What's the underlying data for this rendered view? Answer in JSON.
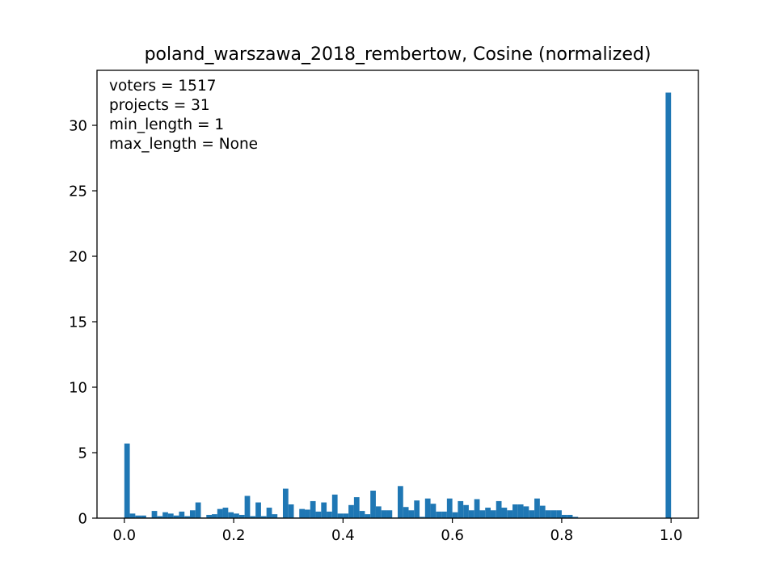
{
  "chart_data": {
    "type": "bar",
    "title": "poland_warszawa_2018_rembertow, Cosine (normalized)",
    "xlabel": "",
    "ylabel": "",
    "xlim": [
      -0.05,
      1.05
    ],
    "ylim": [
      0,
      34.2
    ],
    "x_ticks": [
      {
        "value": 0.0,
        "label": "0.0"
      },
      {
        "value": 0.2,
        "label": "0.2"
      },
      {
        "value": 0.4,
        "label": "0.4"
      },
      {
        "value": 0.6,
        "label": "0.6"
      },
      {
        "value": 0.8,
        "label": "0.8"
      },
      {
        "value": 1.0,
        "label": "1.0"
      }
    ],
    "y_ticks": [
      {
        "value": 0,
        "label": "0"
      },
      {
        "value": 5,
        "label": "5"
      },
      {
        "value": 10,
        "label": "10"
      },
      {
        "value": 15,
        "label": "15"
      },
      {
        "value": 20,
        "label": "20"
      },
      {
        "value": 25,
        "label": "25"
      },
      {
        "value": 30,
        "label": "30"
      }
    ],
    "annotations": [
      "voters = 1517",
      "projects = 31",
      "min_length = 1",
      "max_length = None"
    ],
    "grid": false,
    "legend": "none",
    "bar_color": "#1f77b4",
    "bin_width": 0.01,
    "bins_start": [
      0.0,
      0.01,
      0.02,
      0.03,
      0.04,
      0.05,
      0.06,
      0.07,
      0.08,
      0.09,
      0.1,
      0.11,
      0.12,
      0.13,
      0.14,
      0.15,
      0.16,
      0.17,
      0.18,
      0.19,
      0.2,
      0.21,
      0.22,
      0.23,
      0.24,
      0.25,
      0.26,
      0.27,
      0.28,
      0.29,
      0.3,
      0.31,
      0.32,
      0.33,
      0.34,
      0.35,
      0.36,
      0.37,
      0.38,
      0.39,
      0.4,
      0.41,
      0.42,
      0.43,
      0.44,
      0.45,
      0.46,
      0.47,
      0.48,
      0.49,
      0.5,
      0.51,
      0.52,
      0.53,
      0.54,
      0.55,
      0.56,
      0.57,
      0.58,
      0.59,
      0.6,
      0.61,
      0.62,
      0.63,
      0.64,
      0.65,
      0.66,
      0.67,
      0.68,
      0.69,
      0.7,
      0.71,
      0.72,
      0.73,
      0.74,
      0.75,
      0.76,
      0.77,
      0.78,
      0.79,
      0.8,
      0.81,
      0.82,
      0.83,
      0.84,
      0.85,
      0.86,
      0.87,
      0.88,
      0.89,
      0.9,
      0.91,
      0.92,
      0.93,
      0.94,
      0.95,
      0.96,
      0.97,
      0.98,
      0.99
    ],
    "values": [
      5.7,
      0.35,
      0.2,
      0.2,
      0.05,
      0.55,
      0.15,
      0.45,
      0.35,
      0.2,
      0.5,
      0.15,
      0.6,
      1.2,
      0.05,
      0.25,
      0.3,
      0.7,
      0.8,
      0.45,
      0.35,
      0.25,
      1.7,
      0.15,
      1.2,
      0.15,
      0.8,
      0.3,
      0.05,
      2.25,
      1.05,
      0.05,
      0.7,
      0.65,
      1.3,
      0.5,
      1.2,
      0.5,
      1.8,
      0.35,
      0.35,
      1.0,
      1.6,
      0.55,
      0.3,
      2.1,
      0.9,
      0.6,
      0.6,
      0.05,
      2.45,
      0.85,
      0.6,
      1.35,
      0.1,
      1.5,
      1.1,
      0.5,
      0.5,
      1.5,
      0.45,
      1.3,
      1.0,
      0.6,
      1.45,
      0.6,
      0.8,
      0.6,
      1.3,
      0.8,
      0.6,
      1.05,
      1.05,
      0.9,
      0.6,
      1.5,
      0.95,
      0.6,
      0.6,
      0.6,
      0.25,
      0.25,
      0.1,
      0,
      0,
      0,
      0,
      0,
      0,
      0,
      0,
      0,
      0,
      0,
      0,
      0,
      0,
      0,
      0,
      32.5
    ]
  }
}
